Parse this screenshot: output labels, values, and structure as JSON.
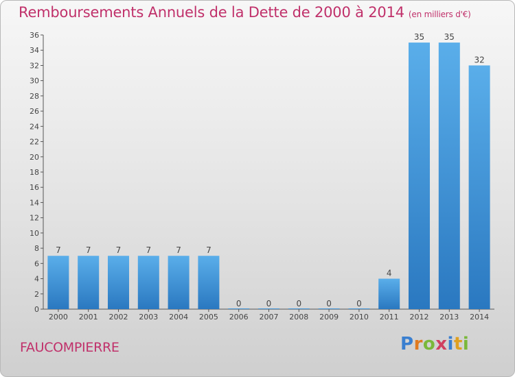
{
  "chart_data": {
    "type": "bar",
    "title": "Remboursements Annuels de la Dette de 2000 à 2014",
    "units": "(en milliers d'€)",
    "categories": [
      "2000",
      "2001",
      "2002",
      "2003",
      "2004",
      "2005",
      "2006",
      "2007",
      "2008",
      "2009",
      "2010",
      "2011",
      "2012",
      "2013",
      "2014"
    ],
    "values": [
      7,
      7,
      7,
      7,
      7,
      7,
      0,
      0,
      0,
      0,
      0,
      4,
      35,
      35,
      32
    ],
    "ylim": [
      0,
      36
    ],
    "yticks": [
      0,
      2,
      4,
      6,
      8,
      10,
      12,
      14,
      16,
      18,
      20,
      22,
      24,
      26,
      28,
      30,
      32,
      34,
      36
    ],
    "grid": false,
    "bar_color": "#3a8fd8"
  },
  "commune": "FAUCOMPIERRE",
  "logo": {
    "letters": [
      "P",
      "r",
      "o",
      "x",
      "i",
      "t",
      "i"
    ],
    "colors": [
      "#3a7fd0",
      "#e07a20",
      "#7ab83a",
      "#d04060",
      "#3a7fd0",
      "#e0a020",
      "#7ab83a"
    ]
  }
}
